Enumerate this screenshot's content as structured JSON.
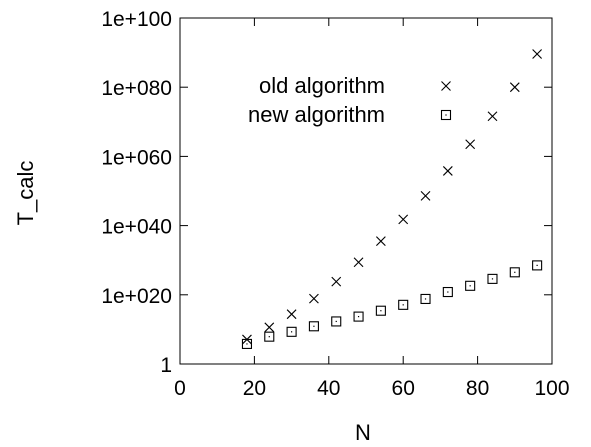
{
  "chart_data": {
    "type": "scatter",
    "xlabel": "N",
    "ylabel": "T_calc",
    "xlim": [
      0,
      100
    ],
    "ylim_log10": [
      0,
      100
    ],
    "y_scale": "log",
    "x_ticks": [
      "0",
      "20",
      "40",
      "60",
      "80",
      "100"
    ],
    "y_ticks": [
      "1",
      "1e+020",
      "1e+040",
      "1e+060",
      "1e+080",
      "1e+100"
    ],
    "legend_placement": "top-right",
    "grid": false,
    "series": [
      {
        "name": "old algorithm",
        "marker": "cross",
        "x": [
          18,
          24,
          30,
          36,
          42,
          48,
          54,
          60,
          66,
          72,
          78,
          84,
          90,
          96
        ],
        "log10_y": [
          7.1,
          10.6,
          14.4,
          18.9,
          23.8,
          29.4,
          35.5,
          41.8,
          48.6,
          55.8,
          63.5,
          71.6,
          80.0,
          89.6
        ]
      },
      {
        "name": "new algorithm",
        "marker": "square",
        "x": [
          18,
          24,
          30,
          36,
          42,
          48,
          54,
          60,
          66,
          72,
          78,
          84,
          90,
          96
        ],
        "log10_y": [
          5.8,
          7.9,
          9.3,
          10.9,
          12.3,
          13.7,
          15.4,
          17.1,
          18.8,
          20.8,
          22.6,
          24.6,
          26.5,
          28.5
        ]
      }
    ]
  }
}
